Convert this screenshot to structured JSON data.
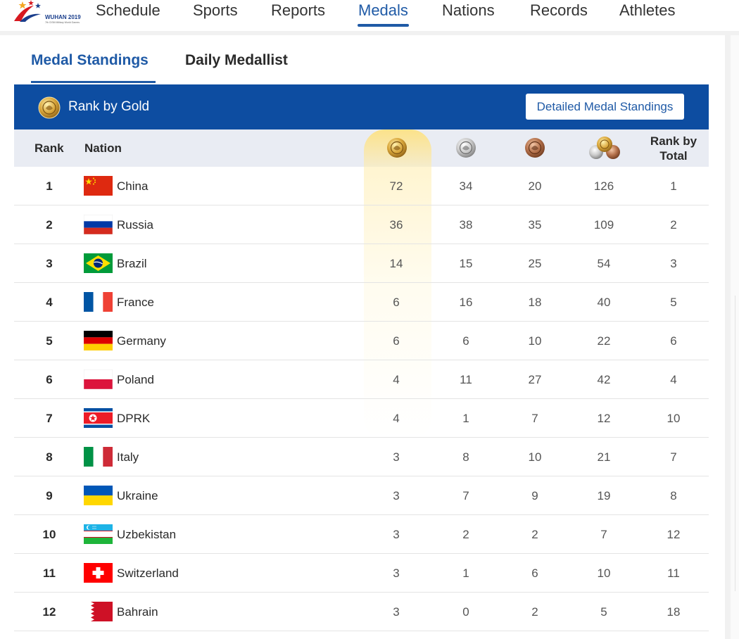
{
  "logo": {
    "year": "WUHAN 2019",
    "sub": "7th CISM Military World Games"
  },
  "nav": [
    "Schedule",
    "Sports",
    "Reports",
    "Medals",
    "Nations",
    "Records",
    "Athletes"
  ],
  "tabs": {
    "active": "Medal Standings",
    "inactive": "Daily Medallist"
  },
  "banner": {
    "title": "Rank by Gold",
    "button": "Detailed Medal Standings"
  },
  "header": {
    "rank": "Rank",
    "nation": "Nation",
    "rank_by_total": "Rank by Total"
  },
  "icons": {
    "gold": "gold-medal-icon",
    "silver": "silver-medal-icon",
    "bronze": "bronze-medal-icon",
    "total": "total-medals-icon"
  },
  "colors": {
    "brand_blue": "#0d4da1",
    "accent_blue": "#1f5aa6",
    "header_bg": "#e9ecf3"
  },
  "rows": [
    {
      "rank": "1",
      "nation": "China",
      "flag": "china",
      "gold": "72",
      "silver": "34",
      "bronze": "20",
      "total": "126",
      "rank_by_total": "1"
    },
    {
      "rank": "2",
      "nation": "Russia",
      "flag": "russia",
      "gold": "36",
      "silver": "38",
      "bronze": "35",
      "total": "109",
      "rank_by_total": "2"
    },
    {
      "rank": "3",
      "nation": "Brazil",
      "flag": "brazil",
      "gold": "14",
      "silver": "15",
      "bronze": "25",
      "total": "54",
      "rank_by_total": "3"
    },
    {
      "rank": "4",
      "nation": "France",
      "flag": "france",
      "gold": "6",
      "silver": "16",
      "bronze": "18",
      "total": "40",
      "rank_by_total": "5"
    },
    {
      "rank": "5",
      "nation": "Germany",
      "flag": "germany",
      "gold": "6",
      "silver": "6",
      "bronze": "10",
      "total": "22",
      "rank_by_total": "6"
    },
    {
      "rank": "6",
      "nation": "Poland",
      "flag": "poland",
      "gold": "4",
      "silver": "11",
      "bronze": "27",
      "total": "42",
      "rank_by_total": "4"
    },
    {
      "rank": "7",
      "nation": "DPRK",
      "flag": "dprk",
      "gold": "4",
      "silver": "1",
      "bronze": "7",
      "total": "12",
      "rank_by_total": "10"
    },
    {
      "rank": "8",
      "nation": "Italy",
      "flag": "italy",
      "gold": "3",
      "silver": "8",
      "bronze": "10",
      "total": "21",
      "rank_by_total": "7"
    },
    {
      "rank": "9",
      "nation": "Ukraine",
      "flag": "ukraine",
      "gold": "3",
      "silver": "7",
      "bronze": "9",
      "total": "19",
      "rank_by_total": "8"
    },
    {
      "rank": "10",
      "nation": "Uzbekistan",
      "flag": "uzbekistan",
      "gold": "3",
      "silver": "2",
      "bronze": "2",
      "total": "7",
      "rank_by_total": "12"
    },
    {
      "rank": "11",
      "nation": "Switzerland",
      "flag": "switzerland",
      "gold": "3",
      "silver": "1",
      "bronze": "6",
      "total": "10",
      "rank_by_total": "11"
    },
    {
      "rank": "12",
      "nation": "Bahrain",
      "flag": "bahrain",
      "gold": "3",
      "silver": "0",
      "bronze": "2",
      "total": "5",
      "rank_by_total": "18"
    }
  ]
}
